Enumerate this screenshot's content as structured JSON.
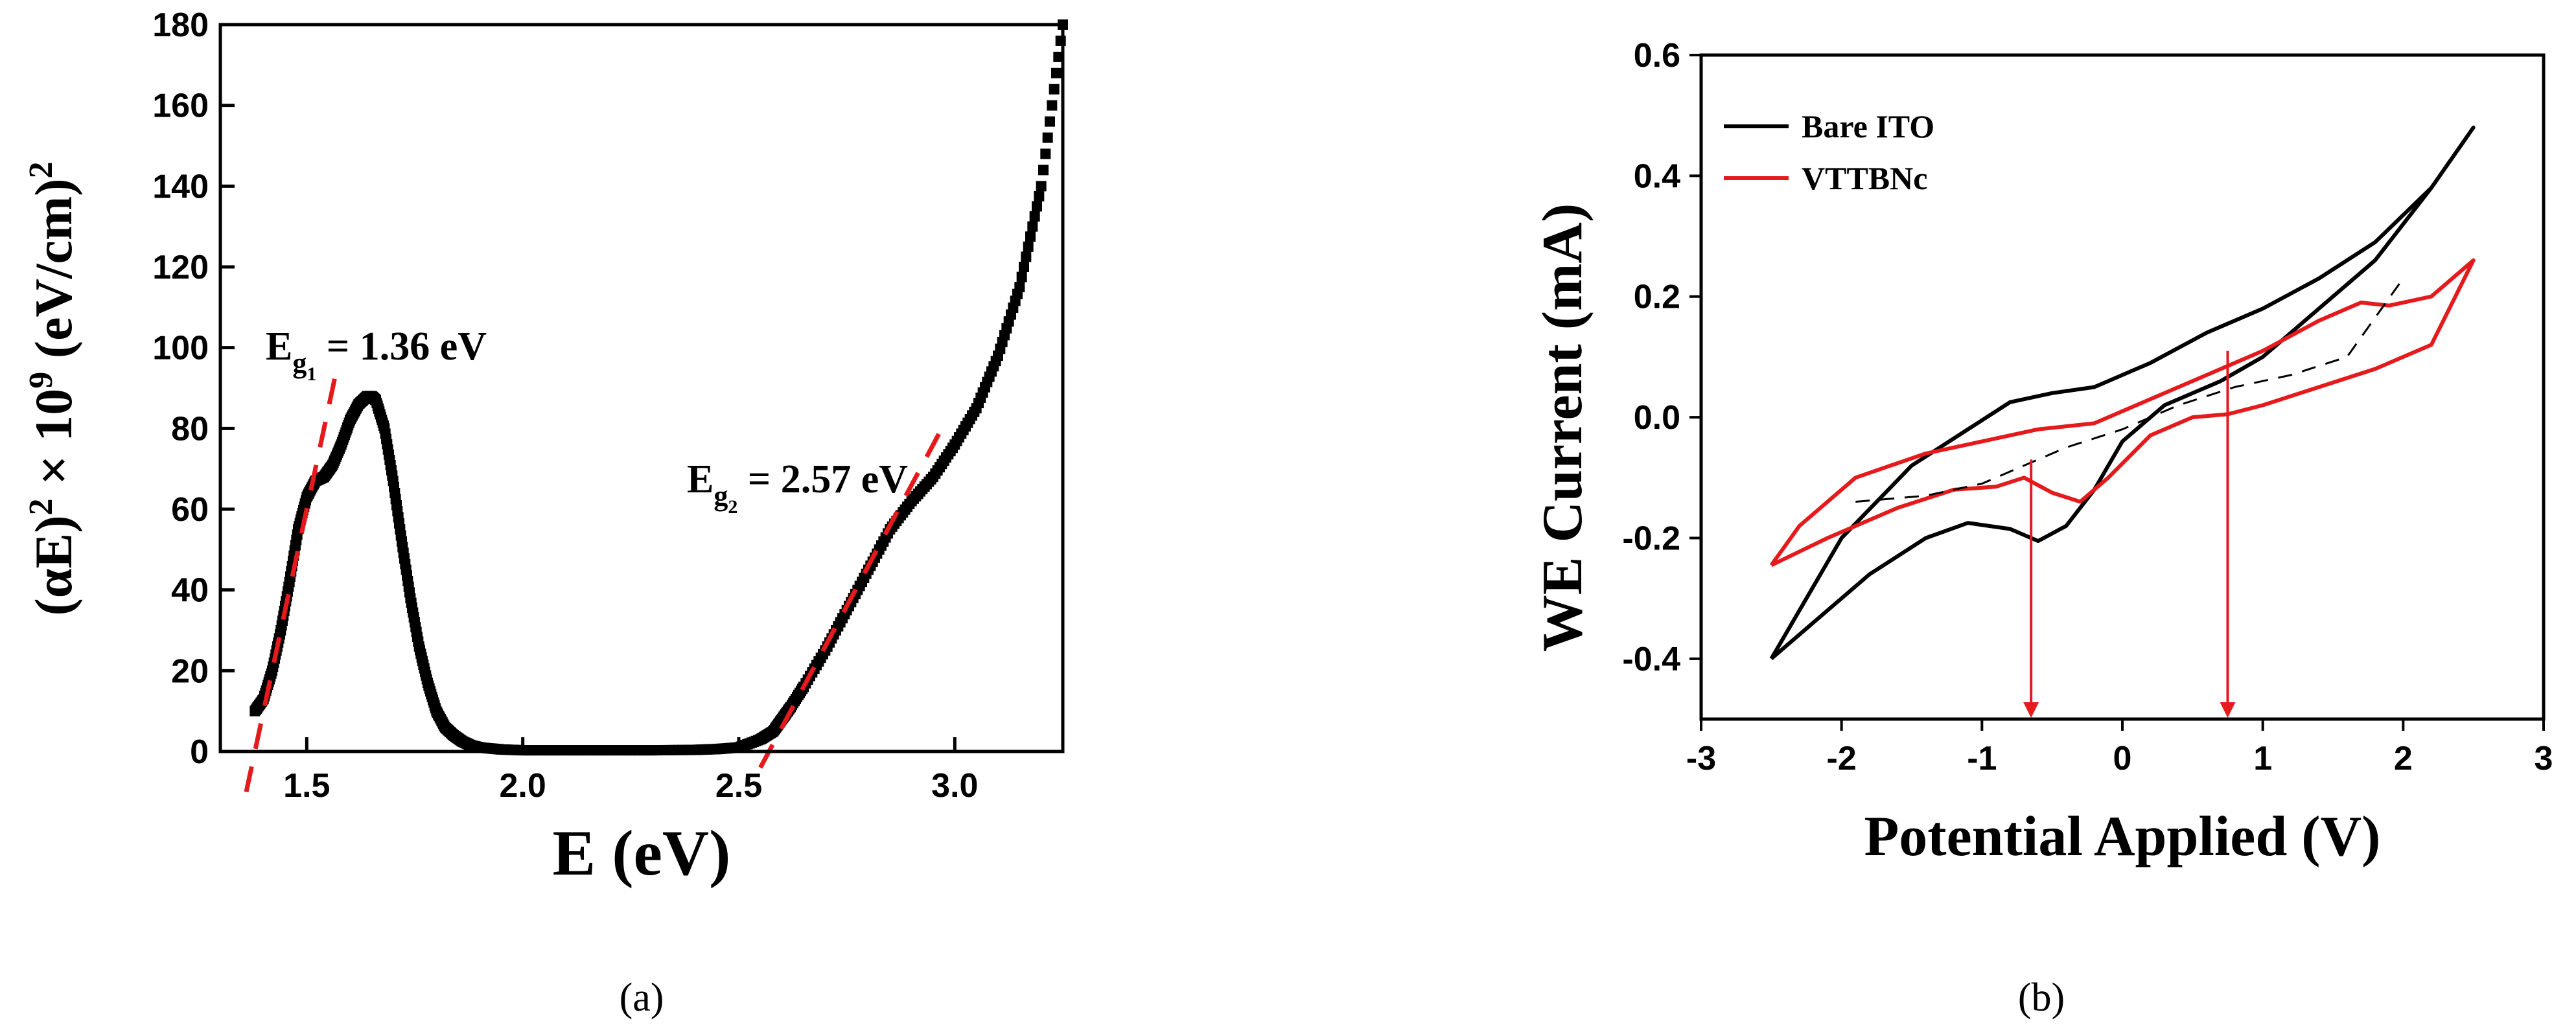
{
  "chart_data": [
    {
      "panel": "(a)",
      "type": "scatter",
      "xlabel": "E (eV)",
      "ylabel": "(αE)² × 10⁹ (eV/cm)²",
      "xlim": [
        1.3,
        3.25
      ],
      "ylim": [
        0,
        180
      ],
      "xticks": [
        "1.5",
        "2.0",
        "2.5",
        "3.0"
      ],
      "yticks": [
        "0",
        "20",
        "40",
        "60",
        "80",
        "100",
        "120",
        "140",
        "160",
        "180"
      ],
      "series": [
        {
          "color": "#000000",
          "x": [
            1.38,
            1.4,
            1.42,
            1.44,
            1.46,
            1.48,
            1.5,
            1.52,
            1.54,
            1.56,
            1.58,
            1.6,
            1.62,
            1.64,
            1.65,
            1.66,
            1.68,
            1.7,
            1.72,
            1.74,
            1.76,
            1.78,
            1.8,
            1.82,
            1.84,
            1.86,
            1.88,
            1.9,
            1.95,
            2.0,
            2.1,
            2.2,
            2.3,
            2.4,
            2.45,
            2.5,
            2.55,
            2.58,
            2.6,
            2.62,
            2.65,
            2.7,
            2.75,
            2.8,
            2.85,
            2.9,
            2.95,
            3.0,
            3.05,
            3.1,
            3.15,
            3.2,
            3.25
          ],
          "y": [
            10,
            13,
            20,
            30,
            42,
            55,
            63,
            67,
            68,
            71,
            76,
            82,
            86,
            88,
            88,
            87,
            80,
            67,
            52,
            38,
            26,
            17,
            10,
            6,
            4,
            2.5,
            1.5,
            1,
            0.5,
            0.3,
            0.3,
            0.3,
            0.3,
            0.4,
            0.6,
            1,
            3,
            5,
            8,
            11,
            16,
            25,
            35,
            45,
            55,
            62,
            68,
            76,
            85,
            98,
            115,
            140,
            180
          ]
        }
      ],
      "annotations": [
        {
          "text": "E",
          "sub": "g1",
          "value": "= 1.36 eV"
        },
        {
          "text": "E",
          "sub": "g2",
          "value": "= 2.57 eV"
        }
      ],
      "fit_lines": [
        {
          "color": "#e41a1c",
          "dash": true,
          "x": [
            1.36,
            1.57
          ],
          "y": [
            -10,
            95
          ]
        },
        {
          "color": "#e41a1c",
          "dash": true,
          "x": [
            2.55,
            2.97
          ],
          "y": [
            -4,
            80
          ]
        }
      ]
    },
    {
      "panel": "(b)",
      "type": "line",
      "xlabel": "Potential Applied (V)",
      "ylabel": "WE Current (mA)",
      "xlim": [
        -3,
        3
      ],
      "ylim": [
        -0.5,
        0.6
      ],
      "xticks": [
        "-3",
        "-2",
        "-1",
        "0",
        "1",
        "2",
        "3"
      ],
      "yticks": [
        "0.6",
        "0.4",
        "0.2",
        "0.0",
        "-0.2",
        "-0.4"
      ],
      "legend_placement": "top-left",
      "series": [
        {
          "name": "Bare ITO",
          "color": "#000000",
          "x": [
            -2.5,
            -2.2,
            -1.8,
            -1.4,
            -1.1,
            -0.8,
            -0.6,
            -0.4,
            -0.2,
            0.0,
            0.3,
            0.7,
            1.0,
            1.4,
            1.8,
            2.2,
            2.5,
            2.2,
            1.8,
            1.4,
            1.0,
            0.6,
            0.2,
            -0.2,
            -0.5,
            -0.8,
            -1.1,
            -1.5,
            -2.0,
            -2.5
          ],
          "y": [
            -0.4,
            -0.34,
            -0.26,
            -0.2,
            -0.175,
            -0.185,
            -0.205,
            -0.18,
            -0.12,
            -0.04,
            0.02,
            0.06,
            0.1,
            0.18,
            0.26,
            0.38,
            0.48,
            0.38,
            0.29,
            0.23,
            0.18,
            0.14,
            0.09,
            0.05,
            0.04,
            0.025,
            -0.02,
            -0.08,
            -0.2,
            -0.4
          ]
        },
        {
          "name": "VTTBNc",
          "color": "#e41a1c",
          "x": [
            -2.5,
            -2.1,
            -1.6,
            -1.2,
            -0.9,
            -0.7,
            -0.5,
            -0.3,
            -0.1,
            0.2,
            0.5,
            0.75,
            1.0,
            1.4,
            1.8,
            2.2,
            2.5,
            2.2,
            1.9,
            1.7,
            1.4,
            1.0,
            0.6,
            0.2,
            -0.2,
            -0.6,
            -1.0,
            -1.4,
            -1.9,
            -2.3,
            -2.5
          ],
          "y": [
            -0.245,
            -0.2,
            -0.15,
            -0.12,
            -0.115,
            -0.1,
            -0.125,
            -0.14,
            -0.1,
            -0.03,
            0.0,
            0.005,
            0.02,
            0.05,
            0.08,
            0.12,
            0.26,
            0.2,
            0.185,
            0.19,
            0.16,
            0.11,
            0.07,
            0.03,
            -0.01,
            -0.02,
            -0.04,
            -0.06,
            -0.1,
            -0.18,
            -0.245
          ]
        },
        {
          "color": "#000000",
          "dash": true,
          "x": [
            -1.9,
            -1.4,
            -1.0,
            -0.7,
            -0.4,
            0.0,
            0.4,
            0.8,
            1.2,
            1.6,
            2.0
          ],
          "y": [
            -0.14,
            -0.13,
            -0.11,
            -0.08,
            -0.05,
            -0.02,
            0.02,
            0.05,
            0.07,
            0.1,
            0.23
          ]
        }
      ],
      "arrows": [
        {
          "color": "#e41a1c",
          "x": -0.65,
          "y_from": -0.07,
          "y_to": -0.5
        },
        {
          "color": "#e41a1c",
          "x": 0.75,
          "y_from": 0.11,
          "y_to": -0.5
        }
      ]
    }
  ],
  "captions": {
    "a": "(a)",
    "b": "(b)"
  },
  "labels": {
    "a_ylabel_main": "(αE)",
    "a_ylabel_sup1": "2",
    "a_ylabel_mid": " × 10",
    "a_ylabel_sup2": "9",
    "a_ylabel_end": " (eV/cm)",
    "a_ylabel_sup3": "2",
    "a_ann1_E": "E",
    "a_ann1_sub": "g",
    "a_ann1_subsub": "1",
    "a_ann1_val": " = 1.36 eV",
    "a_ann2_E": "E",
    "a_ann2_sub": "g",
    "a_ann2_subsub": "2",
    "a_ann2_val": " = 2.57 eV"
  }
}
